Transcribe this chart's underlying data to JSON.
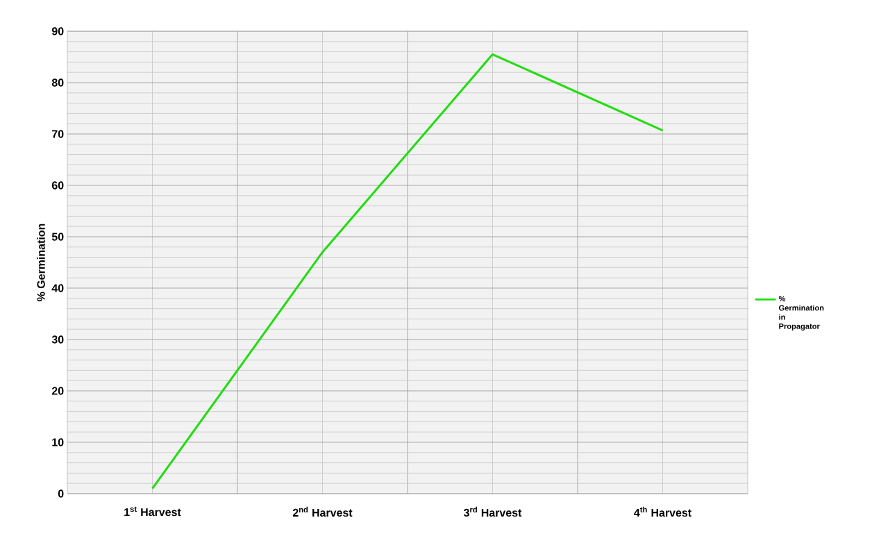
{
  "chart_data": {
    "type": "line",
    "ylabel": "% Germination",
    "categories": [
      "1$^{st}$ Harvest",
      "2$^{nd}$ Harvest",
      "3$^{rd}$ Harvest",
      "4$^{th}$ Harvest"
    ],
    "series": [
      {
        "name": "% Germination in Propagator",
        "color": "#22dd11",
        "values": [
          1,
          47,
          85.5,
          70.7
        ]
      }
    ],
    "ylim": [
      0,
      90
    ],
    "yticks": [
      0,
      10,
      20,
      30,
      40,
      50,
      60,
      70,
      80,
      90
    ],
    "grid": true,
    "legend": "right",
    "marker": "none",
    "line_style": "solid"
  }
}
